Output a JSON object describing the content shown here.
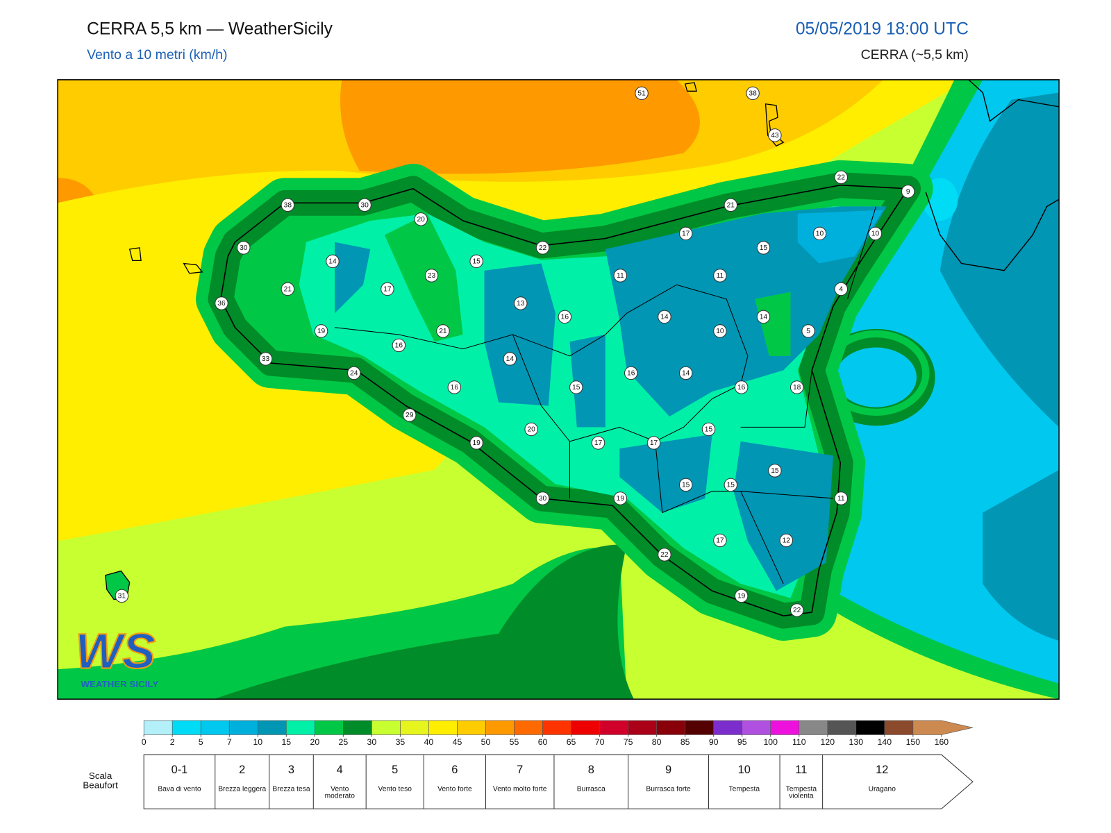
{
  "header": {
    "title": "CERRA 5,5 km — WeatherSicily",
    "subtitle": "Vento a 10 metri (km/h)",
    "datetime": "05/05/2019 18:00 UTC",
    "model": "CERRA (~5,5 km)"
  },
  "map": {
    "stations": [
      51,
      38,
      43,
      22,
      9,
      38,
      30,
      20,
      21,
      30,
      22,
      17,
      10,
      10,
      15,
      14,
      15,
      23,
      11,
      11,
      21,
      17,
      4,
      36,
      13,
      16,
      14,
      14,
      19,
      21,
      10,
      5,
      16,
      33,
      14,
      24,
      16,
      14,
      16,
      15,
      16,
      18,
      29,
      20,
      15,
      19,
      17,
      17,
      15,
      15,
      15,
      30,
      19,
      11,
      17,
      12,
      22,
      31,
      19,
      22
    ]
  },
  "logo": {
    "initials": "WS",
    "name": "WEATHER SICILY"
  },
  "colorbar": {
    "ticks": [
      0,
      2,
      5,
      7,
      10,
      15,
      20,
      25,
      30,
      35,
      40,
      45,
      50,
      55,
      60,
      65,
      70,
      75,
      80,
      85,
      90,
      95,
      100,
      110,
      120,
      130,
      140,
      150,
      160
    ],
    "colors": [
      "#b4f0fa",
      "#00dcf5",
      "#00c8ee",
      "#00b0dc",
      "#0096b4",
      "#00f0a8",
      "#00c846",
      "#008c28",
      "#c8ff30",
      "#e6f51e",
      "#ffee00",
      "#ffcc00",
      "#ff9900",
      "#ff6a00",
      "#ff3300",
      "#ee0000",
      "#d0002a",
      "#aa0018",
      "#880008",
      "#550000",
      "#7b2ecc",
      "#b050e0",
      "#ee10dd",
      "#888888",
      "#555555",
      "#000000",
      "#8b4a2b",
      "#cd8a50"
    ]
  },
  "beaufort": {
    "label": "Scala Beaufort",
    "levels": [
      {
        "force": "0-1",
        "description": "Bava di vento"
      },
      {
        "force": "2",
        "description": "Brezza leggera"
      },
      {
        "force": "3",
        "description": "Brezza tesa"
      },
      {
        "force": "4",
        "description": "Vento moderato"
      },
      {
        "force": "5",
        "description": "Vento teso"
      },
      {
        "force": "6",
        "description": "Vento forte"
      },
      {
        "force": "7",
        "description": "Vento molto forte"
      },
      {
        "force": "8",
        "description": "Burrasca"
      },
      {
        "force": "9",
        "description": "Burrasca forte"
      },
      {
        "force": "10",
        "description": "Tempesta"
      },
      {
        "force": "11",
        "description": "Tempesta violenta"
      },
      {
        "force": "12",
        "description": "Uragano"
      }
    ]
  }
}
